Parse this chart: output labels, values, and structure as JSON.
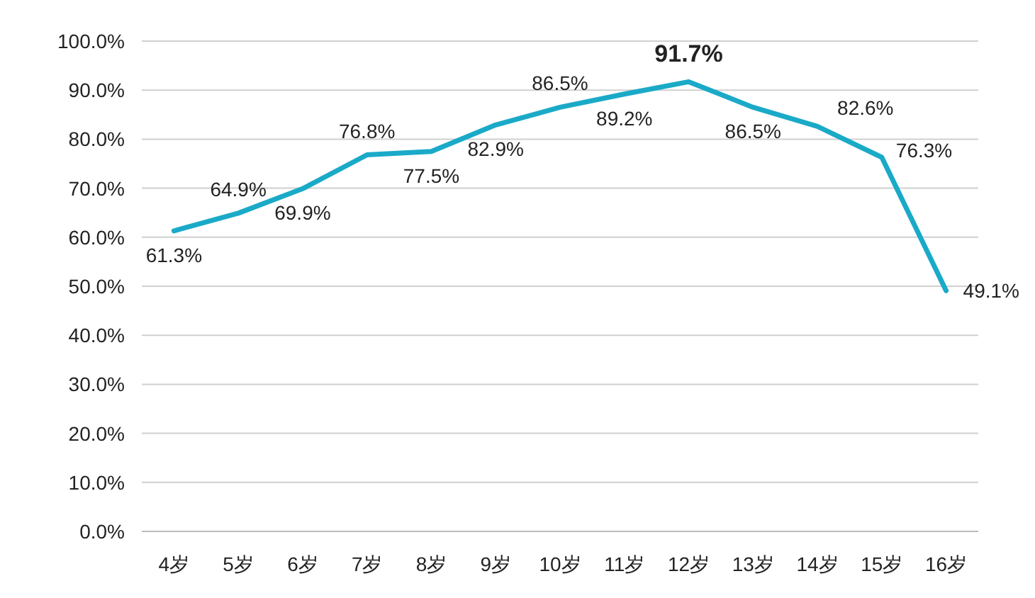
{
  "chart_data": {
    "type": "line",
    "categories": [
      "4岁",
      "5岁",
      "6岁",
      "7岁",
      "8岁",
      "9岁",
      "10岁",
      "11岁",
      "12岁",
      "13岁",
      "14岁",
      "15岁",
      "16岁"
    ],
    "series": [
      {
        "color": "#1aaac8",
        "values": [
          61.3,
          64.9,
          69.9,
          76.8,
          77.5,
          82.9,
          86.5,
          89.2,
          91.7,
          86.5,
          82.6,
          76.3,
          49.1
        ],
        "value_labels": [
          "61.3%",
          "64.9%",
          "69.9%",
          "76.8%",
          "77.5%",
          "82.9%",
          "86.5%",
          "89.2%",
          "91.7%",
          "86.5%",
          "82.6%",
          "76.3%",
          "49.1%"
        ]
      }
    ],
    "ylim": [
      0,
      100
    ],
    "yticks": [
      {
        "value": 0,
        "label": "0.0%"
      },
      {
        "value": 10,
        "label": "10.0%"
      },
      {
        "value": 20,
        "label": "20.0%"
      },
      {
        "value": 30,
        "label": "30.0%"
      },
      {
        "value": 40,
        "label": "40.0%"
      },
      {
        "value": 50,
        "label": "50.0%"
      },
      {
        "value": 60,
        "label": "60.0%"
      },
      {
        "value": 70,
        "label": "70.0%"
      },
      {
        "value": 80,
        "label": "80.0%"
      },
      {
        "value": 90,
        "label": "90.0%"
      },
      {
        "value": 100,
        "label": "100.0%"
      }
    ],
    "grid": "y",
    "marker": "none",
    "line_style": "solid"
  }
}
